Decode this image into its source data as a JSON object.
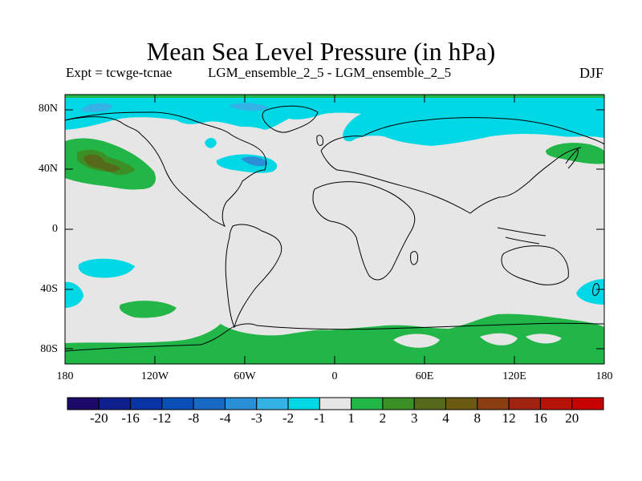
{
  "title": "Mean Sea Level Pressure (in hPa)",
  "subtitle_left": "Expt = tcwge-tcnae",
  "subtitle_center": "LGM_ensemble_2_5 - LGM_ensemble_2_5",
  "subtitle_right": "DJF",
  "lat_labels": [
    "80N",
    "40N",
    "0",
    "40S",
    "80S"
  ],
  "lon_labels": [
    "180",
    "120W",
    "60W",
    "0",
    "60E",
    "120E",
    "180"
  ],
  "colorbar": {
    "labels": [
      "-20",
      "-16",
      "-12",
      "-8",
      "-4",
      "-3",
      "-2",
      "-1",
      "1",
      "2",
      "3",
      "4",
      "8",
      "12",
      "16",
      "20"
    ],
    "colors": [
      "#1b0a6a",
      "#0f1f8c",
      "#0a33a6",
      "#0a4fb8",
      "#1769c4",
      "#2a8fd6",
      "#34b2e6",
      "#00d8e6",
      "#e6e6e6",
      "#22b548",
      "#3c8f25",
      "#56681a",
      "#6a5a14",
      "#8a3e12",
      "#a02210",
      "#b81208",
      "#c80000"
    ]
  },
  "colors": {
    "ocean": "#e6e6e6",
    "coast": "#000000",
    "neg_1": "#00d8e6",
    "neg_2": "#34b2e6",
    "neg_3": "#2a8fd6",
    "neg_4": "#1769c4",
    "pos_1": "#22b548",
    "pos_2": "#3c8f25",
    "pos_3": "#56681a"
  }
}
